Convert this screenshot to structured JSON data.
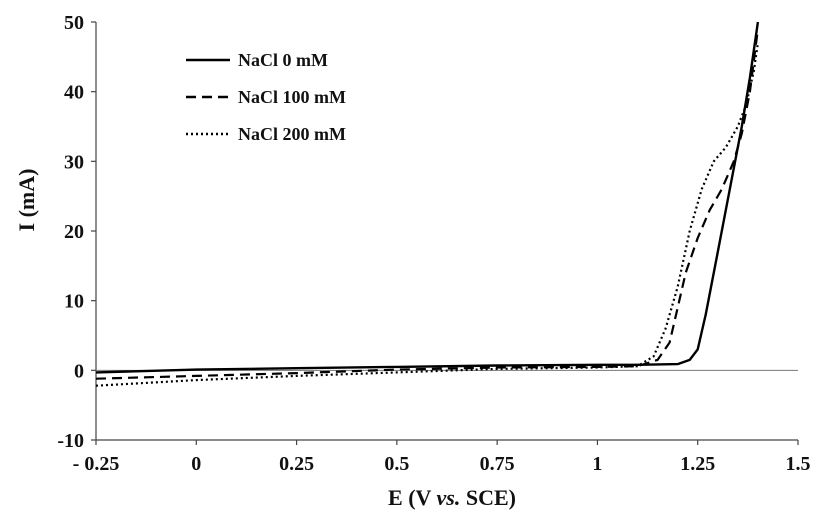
{
  "chart_data": {
    "type": "line",
    "xlabel": "E (V vs. SCE)",
    "xlabel_parts": [
      "E (V ",
      "vs.",
      " SCE)"
    ],
    "ylabel": "I (mA)",
    "xlim": [
      -0.25,
      1.5
    ],
    "ylim": [
      -10,
      50
    ],
    "x_ticks": [
      -0.25,
      0,
      0.25,
      0.5,
      0.75,
      1,
      1.25,
      1.5
    ],
    "x_tick_labels": [
      "- 0.25",
      "0",
      "0.25",
      "0.5",
      "0.75",
      "1",
      "1.25",
      "1.5"
    ],
    "y_ticks": [
      -10,
      0,
      10,
      20,
      30,
      40,
      50
    ],
    "y_tick_labels": [
      "-10",
      "0",
      "10",
      "20",
      "30",
      "40",
      "50"
    ],
    "grid": false,
    "legend_position": "top-left",
    "series": [
      {
        "name": "NaCl 0 mM",
        "style": "solid",
        "color": "#000000",
        "points": [
          [
            -0.25,
            -0.3
          ],
          [
            0,
            0.1
          ],
          [
            0.25,
            0.3
          ],
          [
            0.5,
            0.5
          ],
          [
            0.75,
            0.7
          ],
          [
            1,
            0.8
          ],
          [
            1.1,
            0.8
          ],
          [
            1.2,
            0.9
          ],
          [
            1.23,
            1.5
          ],
          [
            1.25,
            3
          ],
          [
            1.27,
            8
          ],
          [
            1.3,
            17
          ],
          [
            1.33,
            26
          ],
          [
            1.36,
            35
          ],
          [
            1.38,
            42
          ],
          [
            1.395,
            48
          ],
          [
            1.4,
            50
          ]
        ]
      },
      {
        "name": "NaCl 100 mM",
        "style": "dashed",
        "color": "#000000",
        "points": [
          [
            -0.25,
            -1.2
          ],
          [
            0,
            -0.8
          ],
          [
            0.25,
            -0.4
          ],
          [
            0.5,
            0.1
          ],
          [
            0.75,
            0.4
          ],
          [
            1,
            0.5
          ],
          [
            1.1,
            0.6
          ],
          [
            1.15,
            1.5
          ],
          [
            1.18,
            4
          ],
          [
            1.2,
            9
          ],
          [
            1.22,
            14
          ],
          [
            1.25,
            19
          ],
          [
            1.28,
            23
          ],
          [
            1.31,
            26
          ],
          [
            1.34,
            30
          ],
          [
            1.36,
            34
          ],
          [
            1.38,
            40
          ],
          [
            1.4,
            49
          ]
        ]
      },
      {
        "name": "NaCl 200 mM",
        "style": "dotted",
        "color": "#000000",
        "points": [
          [
            -0.25,
            -2.2
          ],
          [
            0,
            -1.4
          ],
          [
            0.25,
            -0.8
          ],
          [
            0.5,
            -0.3
          ],
          [
            0.75,
            0.2
          ],
          [
            1,
            0.4
          ],
          [
            1.1,
            0.6
          ],
          [
            1.14,
            2
          ],
          [
            1.17,
            6
          ],
          [
            1.2,
            12
          ],
          [
            1.23,
            20
          ],
          [
            1.26,
            26
          ],
          [
            1.29,
            30
          ],
          [
            1.32,
            32
          ],
          [
            1.35,
            35
          ],
          [
            1.37,
            38
          ],
          [
            1.39,
            43
          ],
          [
            1.4,
            47
          ]
        ]
      }
    ]
  }
}
